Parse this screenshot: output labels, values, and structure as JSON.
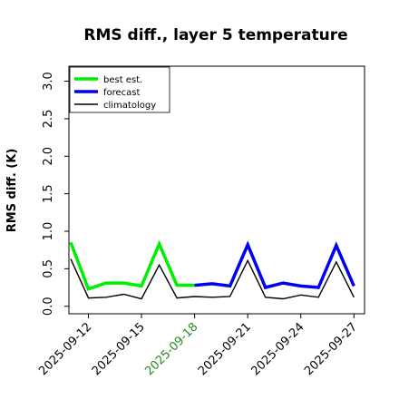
{
  "chart_data": {
    "type": "line",
    "title": "RMS diff., layer 5 temperature",
    "ylabel": "RMS diff. (K)",
    "xlabel": "",
    "ylim": [
      -0.1,
      3.2
    ],
    "yticks": [
      0.0,
      0.5,
      1.0,
      1.5,
      2.0,
      2.5,
      3.0
    ],
    "ytick_labels": [
      "0.0",
      "0.5",
      "1.0",
      "1.5",
      "2.0",
      "2.5",
      "3.0"
    ],
    "x_start": "2025-09-11",
    "xlim": [
      0.9,
      17.6
    ],
    "xticks": [
      {
        "x": 2,
        "label": "2025-09-12",
        "color": "#000000"
      },
      {
        "x": 5,
        "label": "2025-09-15",
        "color": "#000000"
      },
      {
        "x": 8,
        "label": "2025-09-18",
        "color": "#228B22"
      },
      {
        "x": 11,
        "label": "2025-09-21",
        "color": "#000000"
      },
      {
        "x": 14,
        "label": "2025-09-24",
        "color": "#000000"
      },
      {
        "x": 17,
        "label": "2025-09-27",
        "color": "#000000"
      }
    ],
    "grid": false,
    "legend_position": "top-left",
    "series": [
      {
        "name": "climatology",
        "color": "#000000",
        "width": 1.4,
        "x": [
          1.0,
          2.0,
          3.0,
          4.0,
          5.0,
          6.0,
          7.0,
          8.0,
          9.0,
          10.0,
          11.0,
          12.0,
          13.0,
          14.0,
          15.0,
          16.0,
          17.0
        ],
        "values": [
          0.63,
          0.11,
          0.12,
          0.16,
          0.1,
          0.55,
          0.11,
          0.13,
          0.12,
          0.13,
          0.61,
          0.12,
          0.1,
          0.15,
          0.12,
          0.59,
          0.12
        ]
      },
      {
        "name": "best est.",
        "color": "#00ee00",
        "width": 3.5,
        "x": [
          1.0,
          2.0,
          3.0,
          4.0,
          5.0,
          6.0,
          7.0,
          8.0
        ],
        "values": [
          0.85,
          0.23,
          0.31,
          0.31,
          0.27,
          0.83,
          0.28,
          0.28
        ]
      },
      {
        "name": "forecast",
        "color": "#0000ee",
        "width": 3.5,
        "x": [
          8.0,
          9.0,
          10.0,
          11.0,
          12.0,
          13.0,
          14.0,
          15.0,
          16.0,
          17.0
        ],
        "values": [
          0.28,
          0.3,
          0.27,
          0.82,
          0.25,
          0.31,
          0.27,
          0.25,
          0.81,
          0.27
        ]
      }
    ],
    "legend": [
      "best est.",
      "forecast",
      "climatology"
    ]
  }
}
